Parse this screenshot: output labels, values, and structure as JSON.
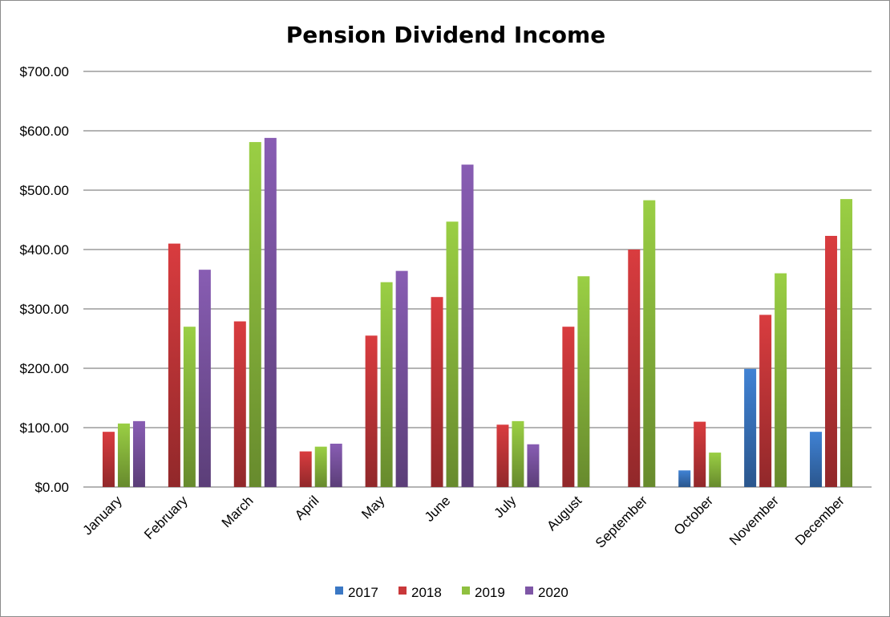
{
  "chart_data": {
    "type": "bar",
    "title": "Pension Dividend Income",
    "xlabel": "",
    "ylabel": "",
    "categories": [
      "January",
      "February",
      "March",
      "April",
      "May",
      "June",
      "July",
      "August",
      "September",
      "October",
      "November",
      "December"
    ],
    "series": [
      {
        "name": "2017",
        "color": "#3b78c4",
        "values": [
          null,
          null,
          null,
          null,
          null,
          null,
          null,
          null,
          null,
          28,
          199,
          93
        ]
      },
      {
        "name": "2018",
        "color": "#c9383a",
        "values": [
          93,
          410,
          279,
          60,
          255,
          320,
          105,
          270,
          400,
          110,
          290,
          423
        ]
      },
      {
        "name": "2019",
        "color": "#8fc03f",
        "values": [
          107,
          270,
          581,
          68,
          345,
          447,
          111,
          355,
          483,
          58,
          360,
          485
        ]
      },
      {
        "name": "2020",
        "color": "#7e56a6",
        "values": [
          111,
          366,
          588,
          73,
          364,
          543,
          72,
          null,
          null,
          null,
          null,
          null
        ]
      }
    ],
    "ylim": [
      0,
      700
    ],
    "yticks": [
      0,
      100,
      200,
      300,
      400,
      500,
      600,
      700
    ],
    "ytick_labels": [
      "$0.00",
      "$100.00",
      "$200.00",
      "$300.00",
      "$400.00",
      "$500.00",
      "$600.00",
      "$700.00"
    ],
    "grid": true,
    "legend_position": "bottom"
  }
}
